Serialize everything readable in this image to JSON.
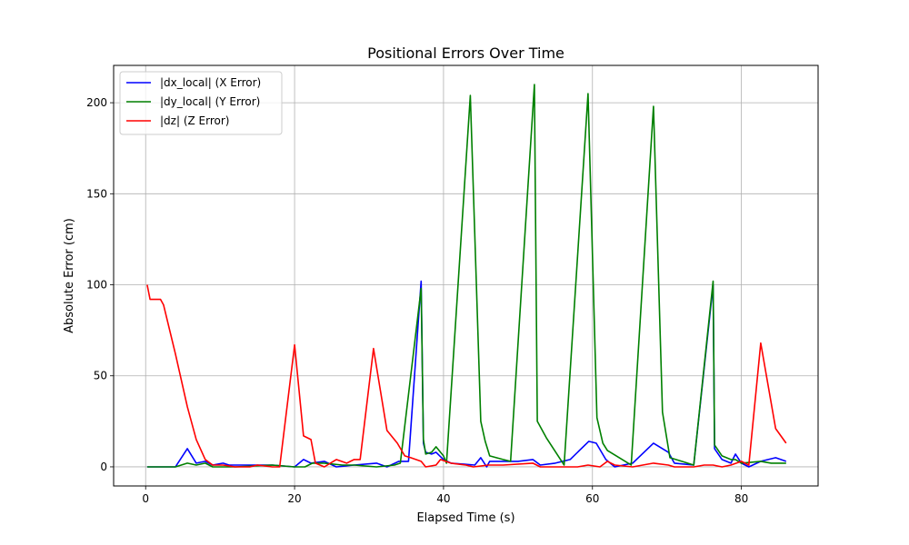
{
  "chart_data": {
    "type": "line",
    "title": "Positional Errors Over Time",
    "xlabel": "Elapsed Time (s)",
    "ylabel": "Absolute Error (cm)",
    "xlim": [
      -4.3,
      90.3
    ],
    "ylim": [
      -10.5,
      220.5
    ],
    "xticks": [
      0,
      20,
      40,
      60,
      80
    ],
    "yticks": [
      0,
      50,
      100,
      150,
      200
    ],
    "grid": true,
    "legend": "top-left",
    "series": [
      {
        "name": "|dx_local| (X Error)",
        "color": "#0000ff",
        "points": [
          [
            0.2,
            0
          ],
          [
            2,
            0
          ],
          [
            4,
            0
          ],
          [
            5.6,
            10
          ],
          [
            6.8,
            2
          ],
          [
            8,
            3
          ],
          [
            9,
            1
          ],
          [
            10.4,
            2
          ],
          [
            11.2,
            1
          ],
          [
            14,
            1
          ],
          [
            17,
            1
          ],
          [
            20,
            0
          ],
          [
            21.2,
            4
          ],
          [
            22.2,
            2
          ],
          [
            24,
            3
          ],
          [
            25.6,
            0
          ],
          [
            28,
            1
          ],
          [
            31,
            2
          ],
          [
            32.4,
            0
          ],
          [
            34,
            3
          ],
          [
            35.3,
            3
          ],
          [
            37,
            102
          ],
          [
            37.3,
            13
          ],
          [
            37.6,
            8
          ],
          [
            38.4,
            7
          ],
          [
            39,
            8
          ],
          [
            40,
            4
          ],
          [
            41,
            2
          ],
          [
            44.2,
            1
          ],
          [
            45,
            5
          ],
          [
            45.8,
            0
          ],
          [
            46.2,
            3
          ],
          [
            48,
            3
          ],
          [
            50,
            3
          ],
          [
            52,
            4
          ],
          [
            53,
            1
          ],
          [
            55,
            2
          ],
          [
            57,
            4
          ],
          [
            59.5,
            14
          ],
          [
            60.5,
            13
          ],
          [
            61.8,
            4
          ],
          [
            63,
            0
          ],
          [
            65.4,
            2
          ],
          [
            68.2,
            13
          ],
          [
            70.2,
            8
          ],
          [
            71,
            2
          ],
          [
            73.6,
            1
          ],
          [
            76.2,
            100
          ],
          [
            76.4,
            10
          ],
          [
            77.4,
            4
          ],
          [
            78.6,
            2
          ],
          [
            79.2,
            7
          ],
          [
            80,
            2
          ],
          [
            81,
            0
          ],
          [
            82.6,
            3
          ],
          [
            84.6,
            5
          ],
          [
            86,
            3
          ]
        ]
      },
      {
        "name": "|dy_local| (Y Error)",
        "color": "#008000",
        "points": [
          [
            0.2,
            0
          ],
          [
            2,
            0
          ],
          [
            4,
            0
          ],
          [
            5.6,
            2
          ],
          [
            6.8,
            1
          ],
          [
            8,
            2
          ],
          [
            9,
            0
          ],
          [
            12,
            0
          ],
          [
            17,
            1
          ],
          [
            20,
            0
          ],
          [
            21.4,
            0
          ],
          [
            22.4,
            2
          ],
          [
            24,
            2
          ],
          [
            26.4,
            1
          ],
          [
            28,
            1
          ],
          [
            31,
            0
          ],
          [
            33.4,
            1
          ],
          [
            34.2,
            2
          ],
          [
            37,
            98
          ],
          [
            37.3,
            15
          ],
          [
            37.6,
            7
          ],
          [
            38.4,
            8
          ],
          [
            39,
            11
          ],
          [
            40,
            6
          ],
          [
            40.4,
            2
          ],
          [
            43.6,
            204
          ],
          [
            45,
            25
          ],
          [
            45.6,
            14
          ],
          [
            46.2,
            6
          ],
          [
            48,
            4
          ],
          [
            49,
            3
          ],
          [
            52.2,
            210
          ],
          [
            52.6,
            25
          ],
          [
            53.8,
            16
          ],
          [
            56.2,
            1
          ],
          [
            59.4,
            205
          ],
          [
            60.6,
            27
          ],
          [
            61.4,
            13
          ],
          [
            62,
            9
          ],
          [
            63.6,
            5
          ],
          [
            65.2,
            1
          ],
          [
            68.2,
            198
          ],
          [
            69.4,
            30
          ],
          [
            70.4,
            5
          ],
          [
            72,
            3
          ],
          [
            73.6,
            1
          ],
          [
            76.2,
            102
          ],
          [
            76.4,
            12
          ],
          [
            77.4,
            6
          ],
          [
            78.6,
            4
          ],
          [
            79.2,
            4
          ],
          [
            80,
            2
          ],
          [
            82.6,
            3
          ],
          [
            84,
            2
          ],
          [
            86,
            2
          ]
        ]
      },
      {
        "name": "|dz| (Z Error)",
        "color": "#ff0000",
        "points": [
          [
            0.2,
            100
          ],
          [
            0.6,
            92
          ],
          [
            2,
            92
          ],
          [
            2.4,
            89
          ],
          [
            4,
            62
          ],
          [
            5.6,
            33
          ],
          [
            6.8,
            15
          ],
          [
            8,
            4
          ],
          [
            9,
            1
          ],
          [
            10.4,
            1
          ],
          [
            12,
            0
          ],
          [
            14,
            0
          ],
          [
            15,
            1
          ],
          [
            17,
            0
          ],
          [
            18,
            0
          ],
          [
            20,
            67
          ],
          [
            21.2,
            17
          ],
          [
            22.2,
            15
          ],
          [
            22.8,
            2
          ],
          [
            24,
            0
          ],
          [
            25.6,
            4
          ],
          [
            27,
            2
          ],
          [
            28,
            4
          ],
          [
            28.8,
            4
          ],
          [
            30.6,
            65
          ],
          [
            32.4,
            20
          ],
          [
            33.8,
            13
          ],
          [
            34.8,
            6
          ],
          [
            35.6,
            5
          ],
          [
            37,
            3
          ],
          [
            37.6,
            0
          ],
          [
            39,
            1
          ],
          [
            39.6,
            4
          ],
          [
            41,
            2
          ],
          [
            43,
            1
          ],
          [
            44,
            0
          ],
          [
            46,
            1
          ],
          [
            48,
            1
          ],
          [
            52,
            2
          ],
          [
            53,
            0
          ],
          [
            56.2,
            0
          ],
          [
            58,
            0
          ],
          [
            59.4,
            1
          ],
          [
            61,
            0
          ],
          [
            62,
            3
          ],
          [
            63,
            1
          ],
          [
            65.4,
            0
          ],
          [
            68.2,
            2
          ],
          [
            70.2,
            1
          ],
          [
            71,
            0
          ],
          [
            73.6,
            0
          ],
          [
            75,
            1
          ],
          [
            76.2,
            1
          ],
          [
            77.4,
            0
          ],
          [
            78.6,
            1
          ],
          [
            80,
            3
          ],
          [
            81,
            1
          ],
          [
            82.6,
            68
          ],
          [
            84.6,
            21
          ],
          [
            86,
            13
          ]
        ]
      }
    ]
  }
}
